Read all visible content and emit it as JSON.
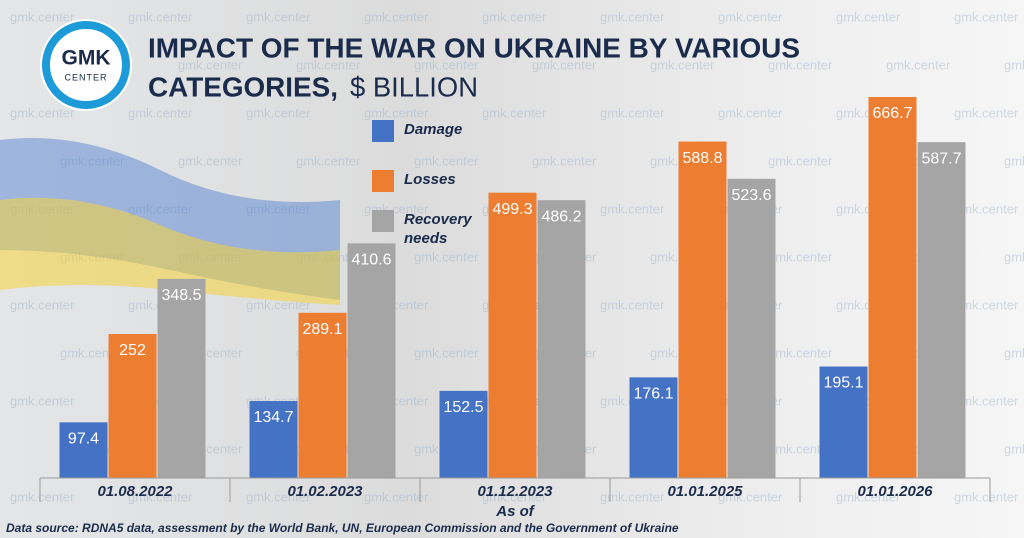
{
  "logo": {
    "name": "GMK",
    "sub": "CENTER"
  },
  "watermark": "gmk.center",
  "chart_data": {
    "type": "bar",
    "title": [
      "IMPACT OF THE WAR ON UKRAINE BY VARIOUS",
      "CATEGORIES,"
    ],
    "unit": "$ BILLION",
    "x_label": "As of",
    "source": "Data source: RDNA5 data, assessment by the World Bank, UN, European Commission and the Government of Ukraine",
    "categories": [
      "01.08.2022",
      "01.02.2023",
      "01.12.2023",
      "01.01.2025",
      "01.01.2026"
    ],
    "series": [
      {
        "name": "Damage",
        "color": "#4472c4",
        "values": [
          97.4,
          134.7,
          152.5,
          176.1,
          195.1
        ]
      },
      {
        "name": "Losses",
        "color": "#ed7d31",
        "values": [
          252,
          289.1,
          499.3,
          588.8,
          666.7
        ]
      },
      {
        "name": "Recovery needs",
        "color": "#a5a5a5",
        "values": [
          348.5,
          410.6,
          486.2,
          523.6,
          587.7
        ]
      }
    ],
    "ylim": [
      0,
      700
    ]
  }
}
